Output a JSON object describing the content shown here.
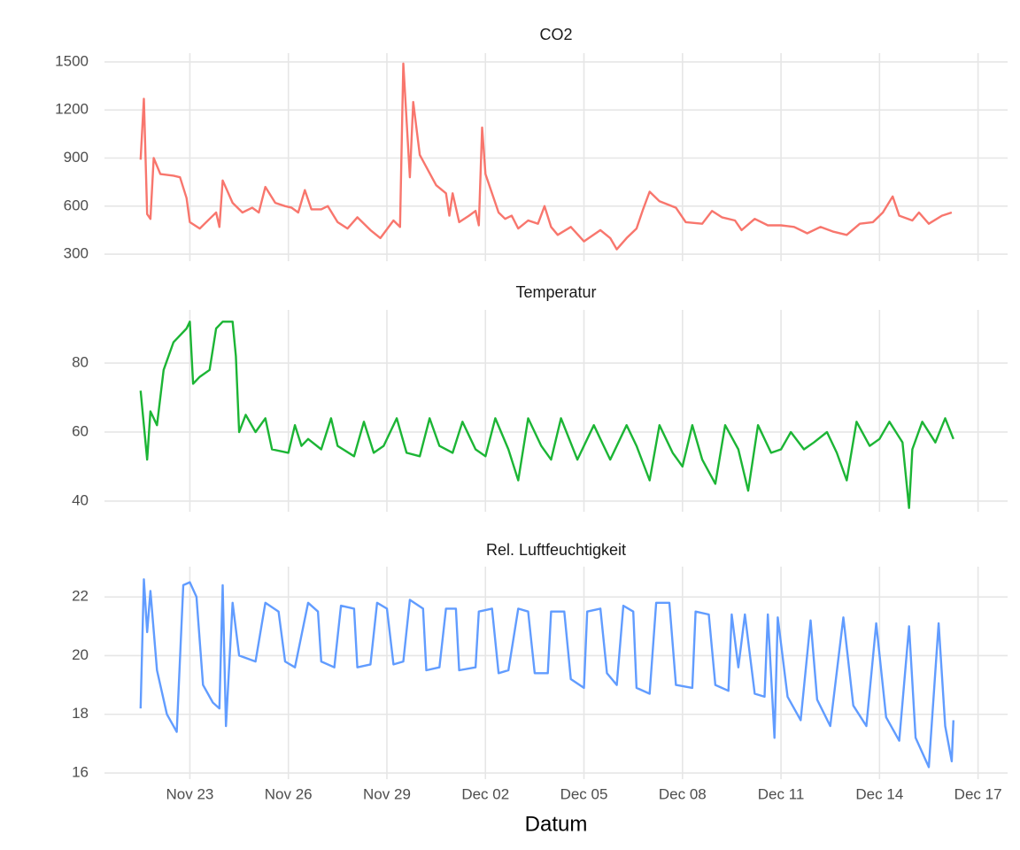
{
  "chart_data": [
    {
      "type": "line",
      "title": "CO2",
      "color": "#F8766D",
      "xlim": [
        20.4,
        47.9
      ],
      "ylim": [
        256,
        1555
      ],
      "yticks": [
        300,
        600,
        900,
        1200,
        1500
      ],
      "grid": true,
      "x": [
        21.5,
        21.6,
        21.7,
        21.8,
        21.9,
        22.1,
        22.5,
        22.7,
        22.9,
        23.0,
        23.3,
        23.6,
        23.8,
        23.9,
        24.0,
        24.3,
        24.6,
        24.9,
        25.1,
        25.3,
        25.6,
        25.9,
        26.1,
        26.3,
        26.5,
        26.7,
        27.0,
        27.2,
        27.5,
        27.8,
        28.1,
        28.5,
        28.8,
        29.2,
        29.4,
        29.5,
        29.7,
        29.8,
        30.0,
        30.5,
        30.8,
        30.9,
        31.0,
        31.2,
        31.5,
        31.7,
        31.8,
        31.9,
        32.0,
        32.4,
        32.6,
        32.8,
        33.0,
        33.3,
        33.6,
        33.8,
        34.0,
        34.2,
        34.6,
        35.0,
        35.5,
        35.8,
        36.0,
        36.3,
        36.6,
        36.8,
        37.0,
        37.3,
        37.8,
        38.1,
        38.6,
        38.9,
        39.2,
        39.6,
        39.8,
        40.2,
        40.6,
        41.0,
        41.4,
        41.8,
        42.2,
        42.6,
        43.0,
        43.4,
        43.8,
        44.1,
        44.4,
        44.6,
        45.0,
        45.2,
        45.5,
        45.9,
        46.2
      ],
      "values": [
        890,
        1270,
        550,
        520,
        900,
        800,
        790,
        780,
        650,
        500,
        460,
        520,
        560,
        470,
        760,
        620,
        560,
        590,
        560,
        720,
        620,
        600,
        590,
        560,
        700,
        580,
        580,
        600,
        500,
        460,
        530,
        450,
        400,
        510,
        470,
        1490,
        780,
        1250,
        920,
        730,
        680,
        540,
        680,
        500,
        540,
        570,
        480,
        1090,
        800,
        560,
        520,
        540,
        460,
        510,
        490,
        600,
        470,
        420,
        470,
        380,
        450,
        400,
        330,
        400,
        460,
        580,
        690,
        630,
        590,
        500,
        490,
        570,
        530,
        510,
        450,
        520,
        480,
        480,
        470,
        430,
        470,
        440,
        420,
        490,
        500,
        560,
        660,
        540,
        510,
        560,
        490,
        540,
        560
      ]
    },
    {
      "type": "line",
      "title": "Temperatur",
      "color": "#1CB535",
      "xlim": [
        20.4,
        47.9
      ],
      "ylim": [
        36.9,
        95.4
      ],
      "yticks": [
        40,
        60,
        80
      ],
      "grid": true,
      "x": [
        21.5,
        21.6,
        21.7,
        21.8,
        22.0,
        22.2,
        22.5,
        22.9,
        23.0,
        23.1,
        23.3,
        23.6,
        23.8,
        24.0,
        24.3,
        24.4,
        24.5,
        24.7,
        25.0,
        25.3,
        25.5,
        26.0,
        26.2,
        26.4,
        26.6,
        27.0,
        27.3,
        27.5,
        28.0,
        28.3,
        28.6,
        28.9,
        29.3,
        29.6,
        30.0,
        30.3,
        30.6,
        31.0,
        31.3,
        31.7,
        32.0,
        32.3,
        32.7,
        33.0,
        33.3,
        33.7,
        34.0,
        34.3,
        34.8,
        35.3,
        35.6,
        35.8,
        36.3,
        36.6,
        37.0,
        37.3,
        37.7,
        38.0,
        38.3,
        38.6,
        39.0,
        39.3,
        39.7,
        40.0,
        40.3,
        40.7,
        41.0,
        41.3,
        41.7,
        42.0,
        42.4,
        42.7,
        43.0,
        43.3,
        43.7,
        44.0,
        44.3,
        44.7,
        44.9,
        45.0,
        45.3,
        45.7,
        46.0,
        46.25
      ],
      "values": [
        72,
        62,
        52,
        66,
        62,
        78,
        86,
        90,
        92,
        74,
        76,
        78,
        90,
        92,
        92,
        82,
        60,
        65,
        60,
        64,
        55,
        54,
        62,
        56,
        58,
        55,
        64,
        56,
        53,
        63,
        54,
        56,
        64,
        54,
        53,
        64,
        56,
        54,
        63,
        55,
        53,
        64,
        55,
        46,
        64,
        56,
        52,
        64,
        52,
        62,
        56,
        52,
        62,
        56,
        46,
        62,
        54,
        50,
        62,
        52,
        45,
        62,
        55,
        43,
        62,
        54,
        55,
        60,
        55,
        57,
        60,
        54,
        46,
        63,
        56,
        58,
        63,
        57,
        38,
        55,
        63,
        57,
        64,
        58
      ]
    },
    {
      "type": "line",
      "title": "Rel. Luftfeuchtigkeit",
      "color": "#619CFF",
      "xlim": [
        20.4,
        47.9
      ],
      "ylim": [
        15.79,
        23.03
      ],
      "yticks": [
        16,
        18,
        20,
        22
      ],
      "grid": true,
      "xlabel": "Datum",
      "xticks": [
        {
          "value": 23,
          "label": "Nov 23"
        },
        {
          "value": 26,
          "label": "Nov 26"
        },
        {
          "value": 29,
          "label": "Nov 29"
        },
        {
          "value": 32,
          "label": "Dec 02"
        },
        {
          "value": 35,
          "label": "Dec 05"
        },
        {
          "value": 38,
          "label": "Dec 08"
        },
        {
          "value": 41,
          "label": "Dec 11"
        },
        {
          "value": 44,
          "label": "Dec 14"
        },
        {
          "value": 47,
          "label": "Dec 17"
        }
      ],
      "x": [
        21.5,
        21.6,
        21.7,
        21.8,
        22.0,
        22.3,
        22.6,
        22.8,
        23.0,
        23.2,
        23.4,
        23.7,
        23.9,
        24.0,
        24.1,
        24.3,
        24.5,
        25.0,
        25.3,
        25.7,
        25.9,
        26.2,
        26.6,
        26.9,
        27.0,
        27.4,
        27.6,
        28.0,
        28.1,
        28.5,
        28.7,
        29.0,
        29.2,
        29.5,
        29.7,
        30.1,
        30.2,
        30.6,
        30.8,
        31.1,
        31.2,
        31.7,
        31.8,
        32.2,
        32.4,
        32.7,
        33.0,
        33.3,
        33.5,
        33.9,
        34.0,
        34.4,
        34.6,
        35.0,
        35.1,
        35.5,
        35.7,
        36.0,
        36.2,
        36.5,
        36.6,
        37.0,
        37.2,
        37.6,
        37.8,
        38.3,
        38.4,
        38.8,
        39.0,
        39.4,
        39.5,
        39.7,
        39.9,
        40.2,
        40.5,
        40.6,
        40.8,
        40.9,
        41.2,
        41.6,
        41.9,
        42.1,
        42.5,
        42.9,
        43.2,
        43.6,
        43.9,
        44.2,
        44.6,
        44.9,
        45.1,
        45.5,
        45.8,
        46.0,
        46.2,
        46.25
      ],
      "values": [
        18.2,
        22.6,
        20.8,
        22.2,
        19.5,
        18.0,
        17.4,
        22.4,
        22.5,
        22.0,
        19.0,
        18.4,
        18.2,
        22.4,
        17.6,
        21.8,
        20.0,
        19.8,
        21.8,
        21.5,
        19.8,
        19.6,
        21.8,
        21.5,
        19.8,
        19.6,
        21.7,
        21.6,
        19.6,
        19.7,
        21.8,
        21.6,
        19.7,
        19.8,
        21.9,
        21.6,
        19.5,
        19.6,
        21.6,
        21.6,
        19.5,
        19.6,
        21.5,
        21.6,
        19.4,
        19.5,
        21.6,
        21.5,
        19.4,
        19.4,
        21.5,
        21.5,
        19.2,
        18.9,
        21.5,
        21.6,
        19.4,
        19.0,
        21.7,
        21.5,
        18.9,
        18.7,
        21.8,
        21.8,
        19.0,
        18.9,
        21.5,
        21.4,
        19.0,
        18.8,
        21.4,
        19.6,
        21.4,
        18.7,
        18.6,
        21.4,
        17.2,
        21.3,
        18.6,
        17.8,
        21.2,
        18.5,
        17.6,
        21.3,
        18.3,
        17.6,
        21.1,
        17.9,
        17.1,
        21.0,
        17.2,
        16.2,
        21.1,
        17.6,
        16.4,
        17.8
      ]
    }
  ]
}
